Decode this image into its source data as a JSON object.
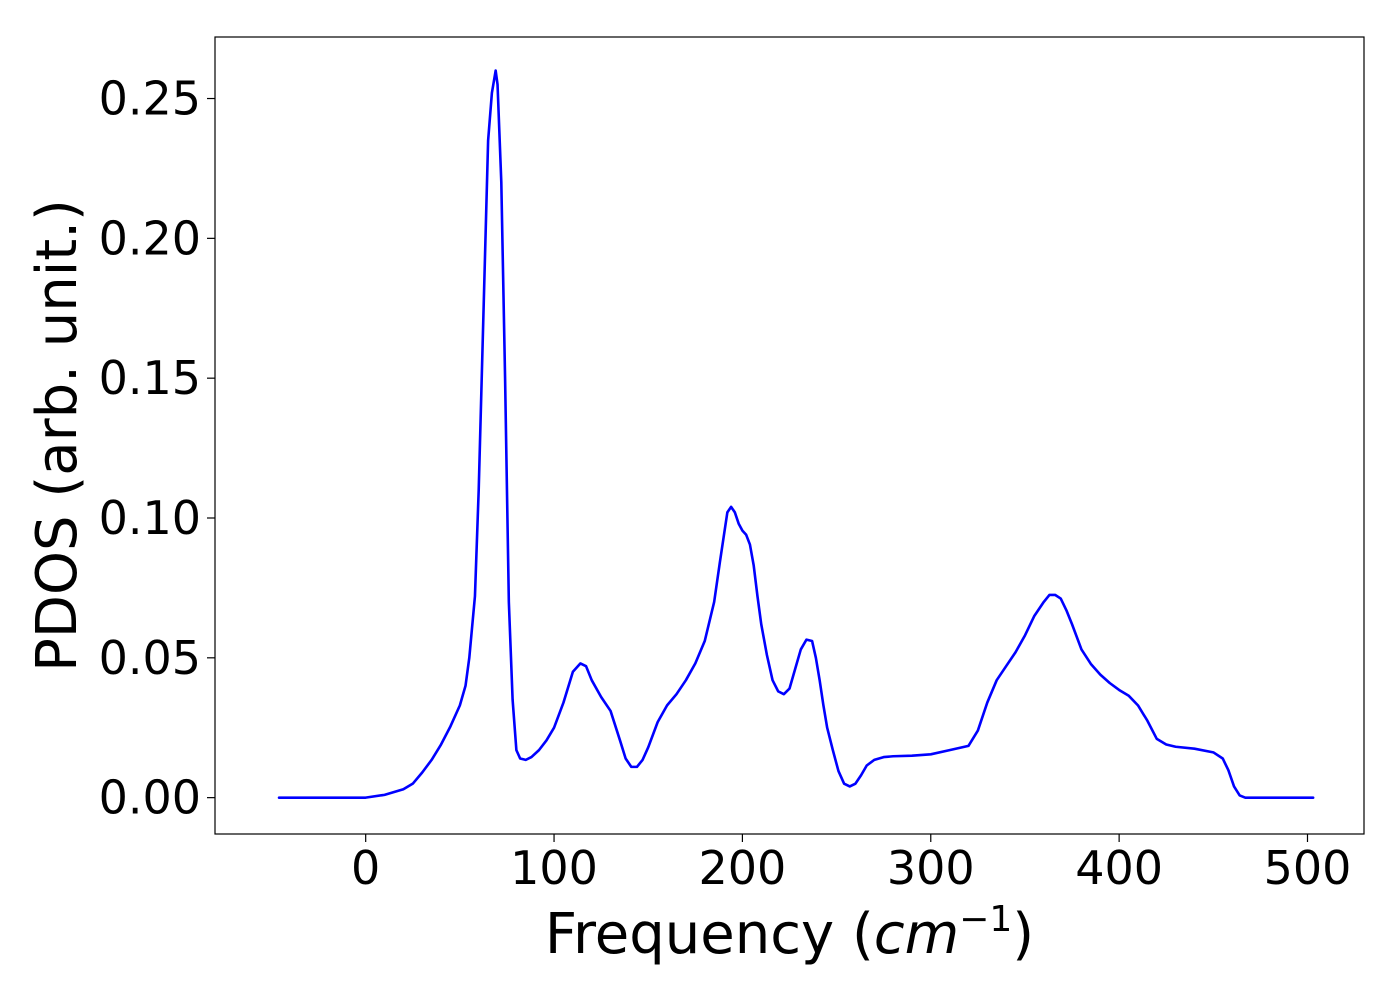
{
  "chart_data": {
    "type": "line",
    "title": "",
    "xlabel": "Frequency (",
    "xlabel_math": "cm",
    "xlabel_superscript": "−1",
    "xlabel_close": ")",
    "ylabel": "PDOS (arb. unit.)",
    "xlim": [
      -80,
      530
    ],
    "ylim": [
      -0.013,
      0.272
    ],
    "xticks": [
      0,
      100,
      200,
      300,
      400,
      500
    ],
    "xtick_labels": [
      "0",
      "100",
      "200",
      "300",
      "400",
      "500"
    ],
    "yticks": [
      0.0,
      0.05,
      0.1,
      0.15,
      0.2,
      0.25
    ],
    "ytick_labels": [
      "0.00",
      "0.05",
      "0.10",
      "0.15",
      "0.20",
      "0.25"
    ],
    "grid": false,
    "legend": "none",
    "series": [
      {
        "color": "#0000ff",
        "x": [
          -46,
          -30,
          -10,
          0,
          10,
          20,
          25,
          30,
          35,
          40,
          45,
          50,
          53,
          55,
          58,
          60,
          62,
          65,
          67,
          69,
          70,
          72,
          74,
          76,
          78,
          80,
          82,
          85,
          88,
          92,
          96,
          100,
          105,
          110,
          114,
          117,
          120,
          125,
          130,
          135,
          138,
          141,
          144,
          147,
          150,
          155,
          160,
          165,
          170,
          175,
          180,
          185,
          188,
          190,
          192,
          194,
          196,
          198,
          200,
          202,
          204,
          206,
          208,
          210,
          213,
          216,
          219,
          222,
          225,
          228,
          231,
          234,
          237,
          239,
          241,
          243,
          245,
          248,
          251,
          254,
          257,
          260,
          263,
          266,
          270,
          275,
          280,
          290,
          300,
          310,
          320,
          325,
          330,
          335,
          340,
          345,
          350,
          355,
          360,
          363,
          366,
          369,
          372,
          375,
          380,
          385,
          390,
          395,
          400,
          405,
          410,
          415,
          420,
          425,
          430,
          440,
          450,
          455,
          458,
          461,
          464,
          467,
          470,
          480,
          503
        ],
        "y": [
          0,
          0,
          0,
          0,
          0.001,
          0.003,
          0.005,
          0.009,
          0.0135,
          0.019,
          0.0255,
          0.033,
          0.04,
          0.05,
          0.072,
          0.11,
          0.16,
          0.235,
          0.252,
          0.26,
          0.255,
          0.22,
          0.15,
          0.07,
          0.035,
          0.017,
          0.014,
          0.0135,
          0.0145,
          0.017,
          0.0205,
          0.025,
          0.034,
          0.045,
          0.048,
          0.047,
          0.042,
          0.036,
          0.031,
          0.0205,
          0.014,
          0.011,
          0.011,
          0.0135,
          0.018,
          0.027,
          0.033,
          0.037,
          0.042,
          0.048,
          0.056,
          0.07,
          0.084,
          0.093,
          0.102,
          0.104,
          0.102,
          0.098,
          0.0955,
          0.094,
          0.0905,
          0.083,
          0.072,
          0.062,
          0.051,
          0.042,
          0.038,
          0.037,
          0.039,
          0.046,
          0.053,
          0.0565,
          0.056,
          0.05,
          0.042,
          0.033,
          0.025,
          0.017,
          0.0095,
          0.005,
          0.004,
          0.005,
          0.008,
          0.0115,
          0.0135,
          0.0145,
          0.0148,
          0.015,
          0.0155,
          0.017,
          0.0185,
          0.024,
          0.034,
          0.042,
          0.047,
          0.052,
          0.058,
          0.065,
          0.07,
          0.0725,
          0.0725,
          0.0712,
          0.067,
          0.062,
          0.053,
          0.0478,
          0.044,
          0.041,
          0.0385,
          0.0365,
          0.033,
          0.0275,
          0.021,
          0.019,
          0.0182,
          0.0175,
          0.0162,
          0.014,
          0.0098,
          0.004,
          0.0008,
          0,
          0,
          0,
          0
        ]
      }
    ]
  }
}
